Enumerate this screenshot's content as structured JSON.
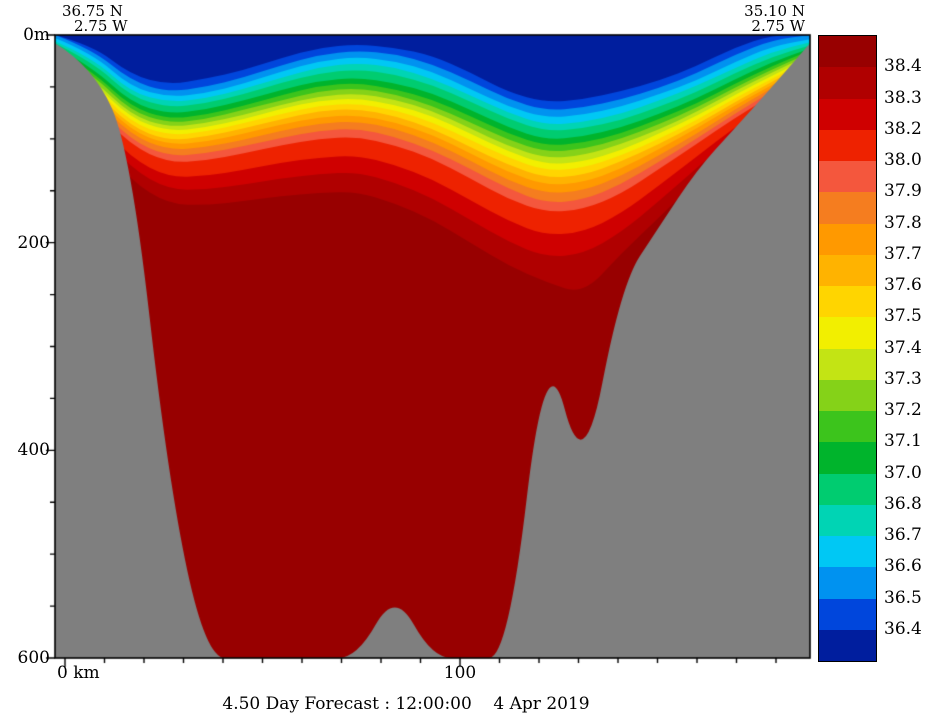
{
  "header": {
    "top_left": {
      "lat": "36.75 N",
      "lon": "2.75 W"
    },
    "top_right": {
      "lat": "35.10 N",
      "lon": "2.75 W"
    }
  },
  "colorbar": {
    "labels": [
      "38.4",
      "38.3",
      "38.2",
      "38.0",
      "37.9",
      "37.8",
      "37.7",
      "37.6",
      "37.5",
      "37.4",
      "37.3",
      "37.2",
      "37.1",
      "37.0",
      "36.8",
      "36.7",
      "36.6",
      "36.5",
      "36.4"
    ]
  },
  "chart_data": {
    "type": "heatmap",
    "subtype": "filled-contour-vertical-section",
    "variable": "salinity (psu)",
    "title": "4.50 Day Forecast : 12:00:00    4 Apr 2019",
    "x_axis": {
      "units": "km",
      "tick_values": [
        0,
        100
      ],
      "tick_labels": [
        "0 km",
        "100"
      ],
      "range_km": [
        -2.5,
        188.6
      ]
    },
    "y_axis": {
      "units": "m",
      "tick_values": [
        0,
        200,
        400,
        600
      ],
      "tick_labels": [
        "0m",
        "200",
        "400",
        "600"
      ],
      "range": [
        0,
        600
      ],
      "inverted": true
    },
    "section_endpoints": {
      "start": {
        "lat": "36.75 N",
        "lon": "2.75 W"
      },
      "end": {
        "lat": "35.10 N",
        "lon": "2.75 W"
      }
    },
    "levels": [
      36.4,
      36.5,
      36.6,
      36.7,
      36.8,
      37.0,
      37.1,
      37.2,
      37.3,
      37.4,
      37.5,
      37.6,
      37.7,
      37.8,
      37.9,
      38.0,
      38.2,
      38.3,
      38.4
    ],
    "band_colors_low_to_high": [
      "#001e9e",
      "#0046dc",
      "#0092f0",
      "#00c8f4",
      "#00d4b4",
      "#00cc70",
      "#00b42c",
      "#3cc41c",
      "#85d218",
      "#c3e414",
      "#f2ef00",
      "#ffd500",
      "#ffb300",
      "#ff9900",
      "#f57d1f",
      "#f4573d",
      "#ee2200",
      "#cf0000",
      "#b00000",
      "#980000"
    ],
    "land_color": "#7f7f7f",
    "columns_frac": [
      0,
      0.05,
      0.1,
      0.15,
      0.2,
      0.25,
      0.3,
      0.35,
      0.4,
      0.45,
      0.5,
      0.55,
      0.6,
      0.65,
      0.7,
      0.75,
      0.8,
      0.85,
      0.9,
      0.95,
      1
    ],
    "bathymetry_m": [
      8,
      30,
      110,
      430,
      600,
      600,
      600,
      600,
      600,
      535,
      600,
      600,
      600,
      290,
      430,
      240,
      185,
      130,
      90,
      50,
      8
    ],
    "isohaline_depths_m": [
      [
        0,
        10,
        38,
        48,
        42,
        34,
        22,
        12,
        9,
        12,
        20,
        36,
        55,
        65,
        62,
        54,
        44,
        30,
        12,
        0,
        0
      ],
      [
        0,
        14,
        44,
        55,
        50,
        41,
        29,
        19,
        15,
        18,
        28,
        44,
        62,
        73,
        70,
        62,
        51,
        37,
        19,
        5,
        0
      ],
      [
        3,
        18,
        50,
        60,
        56,
        47,
        35,
        25,
        21,
        25,
        35,
        52,
        69,
        80,
        77,
        69,
        57,
        44,
        26,
        11,
        4
      ],
      [
        6,
        22,
        55,
        65,
        61,
        52,
        41,
        31,
        27,
        31,
        42,
        58,
        75,
        87,
        84,
        76,
        63,
        49,
        32,
        16,
        7
      ],
      [
        8,
        26,
        59,
        70,
        66,
        57,
        46,
        37,
        33,
        38,
        48,
        64,
        81,
        93,
        90,
        82,
        69,
        55,
        37,
        21,
        10
      ],
      [
        11,
        31,
        65,
        76,
        72,
        63,
        53,
        44,
        41,
        46,
        56,
        72,
        89,
        101,
        98,
        89,
        76,
        61,
        43,
        26,
        13
      ],
      [
        13,
        35,
        69,
        81,
        77,
        68,
        58,
        49,
        46,
        52,
        62,
        78,
        95,
        107,
        104,
        95,
        81,
        66,
        47,
        30,
        15
      ],
      [
        15,
        38,
        73,
        85,
        81,
        72,
        63,
        54,
        51,
        57,
        68,
        84,
        101,
        113,
        110,
        100,
        86,
        70,
        51,
        33,
        17
      ],
      [
        17,
        42,
        77,
        89,
        85,
        77,
        67,
        59,
        56,
        62,
        73,
        90,
        107,
        119,
        116,
        105,
        91,
        74,
        54,
        36,
        19
      ],
      [
        19,
        45,
        80,
        93,
        89,
        81,
        71,
        63,
        61,
        67,
        78,
        95,
        112,
        125,
        122,
        111,
        95,
        78,
        58,
        39,
        21
      ],
      [
        21,
        48,
        84,
        97,
        93,
        85,
        76,
        68,
        66,
        72,
        84,
        101,
        118,
        131,
        128,
        116,
        100,
        82,
        61,
        42,
        23
      ],
      [
        24,
        52,
        88,
        102,
        98,
        90,
        81,
        73,
        71,
        78,
        90,
        108,
        125,
        138,
        135,
        122,
        105,
        86,
        65,
        45,
        25
      ],
      [
        26,
        55,
        92,
        106,
        103,
        95,
        86,
        79,
        77,
        84,
        96,
        114,
        132,
        145,
        142,
        129,
        110,
        90,
        68,
        48,
        27
      ],
      [
        29,
        59,
        96,
        111,
        108,
        101,
        92,
        85,
        83,
        90,
        103,
        121,
        140,
        153,
        150,
        136,
        116,
        95,
        72,
        51,
        30
      ],
      [
        32,
        63,
        101,
        117,
        114,
        107,
        99,
        92,
        90,
        98,
        111,
        129,
        148,
        162,
        159,
        144,
        122,
        100,
        76,
        54,
        33
      ],
      [
        35,
        68,
        106,
        123,
        121,
        114,
        106,
        100,
        98,
        106,
        119,
        138,
        158,
        171,
        168,
        153,
        129,
        105,
        80,
        58,
        36
      ],
      [
        42,
        78,
        118,
        137,
        136,
        130,
        123,
        118,
        116,
        125,
        139,
        159,
        179,
        193,
        190,
        172,
        145,
        117,
        89,
        65,
        41
      ],
      [
        48,
        86,
        128,
        149,
        149,
        144,
        138,
        134,
        132,
        142,
        157,
        178,
        199,
        214,
        211,
        190,
        160,
        128,
        97,
        71,
        46
      ],
      [
        55,
        95,
        140,
        163,
        164,
        160,
        155,
        152,
        151,
        162,
        178,
        200,
        222,
        238,
        250,
        210,
        176,
        140,
        106,
        78,
        51
      ]
    ]
  }
}
